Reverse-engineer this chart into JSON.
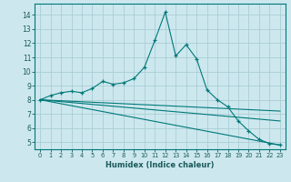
{
  "xlabel": "Humidex (Indice chaleur)",
  "background_color": "#cce8ee",
  "grid_color": "#aacdd6",
  "line_color": "#007878",
  "xlim": [
    -0.5,
    23.5
  ],
  "ylim": [
    4.5,
    14.8
  ],
  "xticks": [
    0,
    1,
    2,
    3,
    4,
    5,
    6,
    7,
    8,
    9,
    10,
    11,
    12,
    13,
    14,
    15,
    16,
    17,
    18,
    19,
    20,
    21,
    22,
    23
  ],
  "yticks": [
    5,
    6,
    7,
    8,
    9,
    10,
    11,
    12,
    13,
    14
  ],
  "line1_x": [
    0,
    1,
    2,
    3,
    4,
    5,
    6,
    7,
    8,
    9,
    10,
    11,
    12,
    13,
    14,
    15,
    16,
    17,
    18,
    19,
    20,
    21,
    22,
    23
  ],
  "line1_y": [
    8.0,
    8.3,
    8.5,
    8.6,
    8.5,
    8.8,
    9.3,
    9.1,
    9.2,
    9.5,
    10.3,
    12.2,
    14.2,
    11.1,
    11.9,
    10.9,
    8.7,
    8.0,
    7.5,
    6.5,
    5.8,
    5.2,
    4.9,
    4.8
  ],
  "line2_x": [
    0,
    23
  ],
  "line2_y": [
    8.0,
    7.2
  ],
  "line3_x": [
    0,
    23
  ],
  "line3_y": [
    8.0,
    6.5
  ],
  "line4_x": [
    0,
    23
  ],
  "line4_y": [
    8.0,
    4.8
  ]
}
